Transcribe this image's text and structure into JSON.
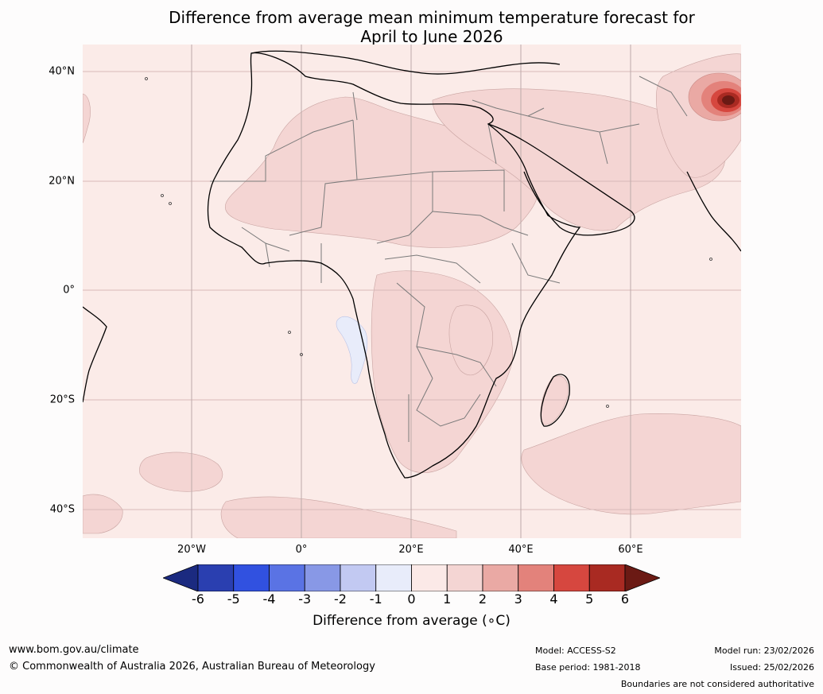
{
  "title": {
    "line1": "Difference from average mean minimum temperature forecast for",
    "line2": "April to June 2026"
  },
  "map": {
    "region": "Africa",
    "background_color": "#fbebe8",
    "lat_labels": [
      "40°N",
      "20°N",
      "0°",
      "20°S",
      "40°S"
    ],
    "lon_labels": [
      "20°W",
      "0°",
      "20°E",
      "40°E",
      "60°E"
    ],
    "gridline_color": "#d8b9b9",
    "land_border_color": "#7a7a7a",
    "coast_color": "#000000",
    "anomaly_shading": [
      {
        "band": "1 to 2",
        "color": "#f4d5d3"
      },
      {
        "band": "2 to 3",
        "color": "#eaa9a4"
      },
      {
        "band": "3 to 4",
        "color": "#e3827b"
      },
      {
        "band": "4 to 5",
        "color": "#d6473f"
      },
      {
        "band": "5 to 6",
        "color": "#a92a22"
      },
      {
        "band": "> 6",
        "color": "#6b1a14"
      },
      {
        "band": "-1 to 0",
        "color": "#e8ecfa"
      }
    ]
  },
  "colorbar": {
    "ticks": [
      "-6",
      "-5",
      "-4",
      "-3",
      "-2",
      "-1",
      "0",
      "1",
      "2",
      "3",
      "4",
      "5",
      "6"
    ],
    "colors": [
      "#1b2a80",
      "#2a3fb0",
      "#3151e0",
      "#5a73e4",
      "#8898e6",
      "#c2c9f2",
      "#e8ecfa",
      "#fbe9e7",
      "#f4d5d3",
      "#eaa9a4",
      "#e3827b",
      "#d6473f",
      "#a92a22",
      "#6b1a14"
    ],
    "label": "Difference from average (∘C)"
  },
  "footer": {
    "website": "www.bom.gov.au/climate",
    "copyright": "© Commonwealth of Australia 2026, Australian Bureau of Meteorology",
    "model": "Model: ACCESS-S2",
    "base_period": "Base period: 1981-2018",
    "model_run": "Model run: 23/02/2026",
    "issued": "Issued: 25/02/2026",
    "disclaimer": "Boundaries are not considered authoritative"
  }
}
